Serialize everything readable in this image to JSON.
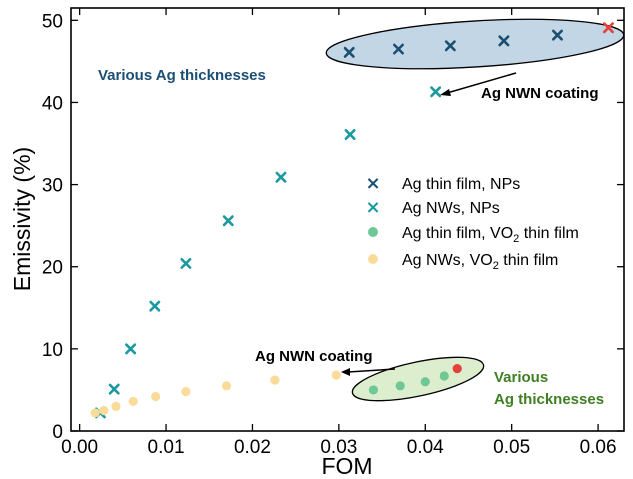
{
  "chart_data": {
    "type": "scatter",
    "xlabel": "FOM",
    "ylabel": "Emissivity (%)",
    "xlim": [
      -0.001,
      0.063
    ],
    "ylim": [
      0,
      51.5
    ],
    "xticks": [
      0.0,
      0.01,
      0.02,
      0.03,
      0.04,
      0.05,
      0.06
    ],
    "xtick_labels": [
      "0.00",
      "0.01",
      "0.02",
      "0.03",
      "0.04",
      "0.05",
      "0.06"
    ],
    "yticks": [
      0,
      10,
      20,
      30,
      40,
      50
    ],
    "ytick_labels": [
      "0",
      "10",
      "20",
      "30",
      "40",
      "50"
    ],
    "grid": false,
    "legend": "center-right",
    "series": [
      {
        "name": "Ag thin film, NPs",
        "marker": "x",
        "color": "#1b4f72",
        "points": [
          [
            0.0312,
            46.1
          ],
          [
            0.0369,
            46.5
          ],
          [
            0.0429,
            46.9
          ],
          [
            0.0491,
            47.5
          ],
          [
            0.0553,
            48.2
          ]
        ]
      },
      {
        "name": "Ag NWs, NPs",
        "marker": "x",
        "color": "#1a9aa0",
        "points": [
          [
            0.0024,
            2.2
          ],
          [
            0.004,
            5.1
          ],
          [
            0.0059,
            10.0
          ],
          [
            0.0087,
            15.2
          ],
          [
            0.0123,
            20.4
          ],
          [
            0.0172,
            25.6
          ],
          [
            0.0233,
            30.9
          ],
          [
            0.0313,
            36.1
          ],
          [
            0.0412,
            41.3
          ]
        ]
      },
      {
        "name": "Ag thin film, VO",
        "name_sub": "2",
        "name_suffix": " thin film",
        "marker": "o",
        "color": "#6fc796",
        "points": [
          [
            0.034,
            5.0
          ],
          [
            0.0371,
            5.5
          ],
          [
            0.04,
            6.0
          ],
          [
            0.0422,
            6.7
          ]
        ]
      },
      {
        "name": "Ag NWs, VO",
        "name_sub": "2",
        "name_suffix": " thin film",
        "marker": "o",
        "color": "#f9dc9a",
        "points": [
          [
            0.0018,
            2.2
          ],
          [
            0.0028,
            2.5
          ],
          [
            0.0042,
            3.0
          ],
          [
            0.0062,
            3.6
          ],
          [
            0.0088,
            4.2
          ],
          [
            0.0123,
            4.8
          ],
          [
            0.017,
            5.5
          ],
          [
            0.0226,
            6.2
          ],
          [
            0.0297,
            6.8
          ]
        ]
      }
    ],
    "highlights": [
      {
        "marker": "x",
        "color": "#e5403a",
        "point": [
          0.0612,
          49.1
        ]
      },
      {
        "marker": "o",
        "color": "#e5403a",
        "point": [
          0.0437,
          7.6
        ]
      }
    ],
    "annotations": [
      {
        "text": "Various Ag thicknesses",
        "color": "#1b4f72"
      },
      {
        "text": "Ag NWN coating",
        "color": "#000000"
      },
      {
        "text": "Ag NWN coating",
        "color": "#000000"
      },
      {
        "text": "Various",
        "color": "#3f7f23"
      },
      {
        "text": "Ag thicknesses",
        "color": "#3f7f23"
      }
    ]
  }
}
